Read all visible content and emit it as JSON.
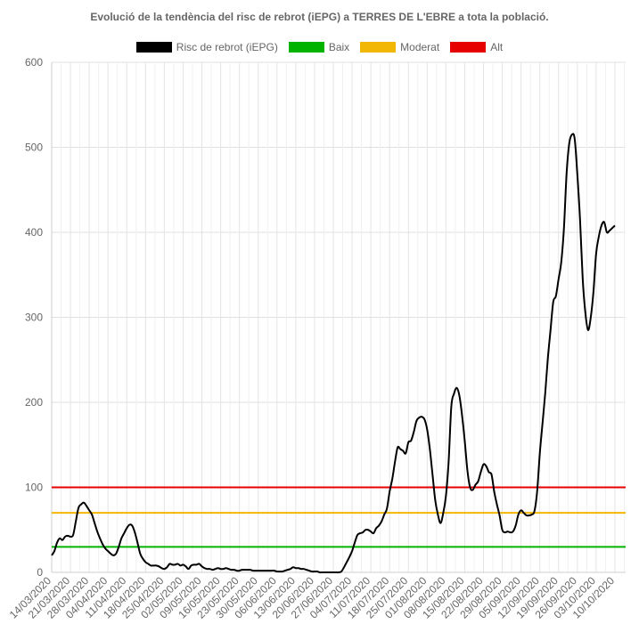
{
  "chart_data": {
    "type": "line",
    "title": "Evolució de la tendència del risc de rebrot (iEPG) a TERRES DE L'EBRE a tota la població.",
    "xlabel": "",
    "ylabel": "",
    "ylim": [
      0,
      600
    ],
    "yticks": [
      0,
      100,
      200,
      300,
      400,
      500,
      600
    ],
    "x_start": "14/03/2020",
    "x_end": "14/10/2020",
    "xtick_labels": [
      "14/03/2020",
      "21/03/2020",
      "28/03/2020",
      "04/04/2020",
      "11/04/2020",
      "18/04/2020",
      "25/04/2020",
      "02/05/2020",
      "09/05/2020",
      "16/05/2020",
      "23/05/2020",
      "30/05/2020",
      "06/06/2020",
      "13/06/2020",
      "20/06/2020",
      "27/06/2020",
      "04/07/2020",
      "11/07/2020",
      "18/07/2020",
      "25/07/2020",
      "01/08/2020",
      "08/08/2020",
      "15/08/2020",
      "22/08/2020",
      "29/08/2020",
      "05/09/2020",
      "12/09/2020",
      "19/09/2020",
      "26/09/2020",
      "03/10/2020",
      "10/10/2020"
    ],
    "grid": true,
    "legend_position": "top",
    "series": [
      {
        "name": "Risc de rebrot (iEPG)",
        "color": "#000000",
        "points": [
          [
            "14/03/2020",
            20
          ],
          [
            "15/03/2020",
            25
          ],
          [
            "16/03/2020",
            35
          ],
          [
            "17/03/2020",
            40
          ],
          [
            "18/03/2020",
            38
          ],
          [
            "19/03/2020",
            42
          ],
          [
            "20/03/2020",
            43
          ],
          [
            "21/03/2020",
            42
          ],
          [
            "22/03/2020",
            44
          ],
          [
            "23/03/2020",
            60
          ],
          [
            "24/03/2020",
            76
          ],
          [
            "25/03/2020",
            80
          ],
          [
            "26/03/2020",
            82
          ],
          [
            "27/03/2020",
            78
          ],
          [
            "28/03/2020",
            73
          ],
          [
            "29/03/2020",
            68
          ],
          [
            "30/03/2020",
            58
          ],
          [
            "31/03/2020",
            48
          ],
          [
            "01/04/2020",
            40
          ],
          [
            "02/04/2020",
            33
          ],
          [
            "03/04/2020",
            28
          ],
          [
            "04/04/2020",
            25
          ],
          [
            "05/04/2020",
            22
          ],
          [
            "06/04/2020",
            20
          ],
          [
            "07/04/2020",
            22
          ],
          [
            "08/04/2020",
            30
          ],
          [
            "09/04/2020",
            40
          ],
          [
            "10/04/2020",
            46
          ],
          [
            "11/04/2020",
            52
          ],
          [
            "12/04/2020",
            56
          ],
          [
            "13/04/2020",
            55
          ],
          [
            "14/04/2020",
            47
          ],
          [
            "15/04/2020",
            35
          ],
          [
            "16/04/2020",
            22
          ],
          [
            "17/04/2020",
            16
          ],
          [
            "18/04/2020",
            12
          ],
          [
            "19/04/2020",
            10
          ],
          [
            "20/04/2020",
            8
          ],
          [
            "21/04/2020",
            8
          ],
          [
            "22/04/2020",
            8
          ],
          [
            "23/04/2020",
            7
          ],
          [
            "24/04/2020",
            5
          ],
          [
            "25/04/2020",
            4
          ],
          [
            "26/04/2020",
            6
          ],
          [
            "27/04/2020",
            10
          ],
          [
            "28/04/2020",
            9
          ],
          [
            "29/04/2020",
            9
          ],
          [
            "30/04/2020",
            10
          ],
          [
            "01/05/2020",
            8
          ],
          [
            "02/05/2020",
            9
          ],
          [
            "03/05/2020",
            7
          ],
          [
            "04/05/2020",
            4
          ],
          [
            "05/05/2020",
            8
          ],
          [
            "06/05/2020",
            9
          ],
          [
            "07/05/2020",
            9
          ],
          [
            "08/05/2020",
            10
          ],
          [
            "09/05/2020",
            7
          ],
          [
            "10/05/2020",
            5
          ],
          [
            "11/05/2020",
            4
          ],
          [
            "12/05/2020",
            4
          ],
          [
            "13/05/2020",
            3
          ],
          [
            "14/05/2020",
            4
          ],
          [
            "15/05/2020",
            5
          ],
          [
            "16/05/2020",
            4
          ],
          [
            "17/05/2020",
            4
          ],
          [
            "18/05/2020",
            5
          ],
          [
            "19/05/2020",
            4
          ],
          [
            "20/05/2020",
            3
          ],
          [
            "21/05/2020",
            3
          ],
          [
            "22/05/2020",
            2
          ],
          [
            "23/05/2020",
            2
          ],
          [
            "24/05/2020",
            3
          ],
          [
            "25/05/2020",
            3
          ],
          [
            "26/05/2020",
            3
          ],
          [
            "27/05/2020",
            3
          ],
          [
            "28/05/2020",
            2
          ],
          [
            "29/05/2020",
            2
          ],
          [
            "30/05/2020",
            2
          ],
          [
            "31/05/2020",
            2
          ],
          [
            "01/06/2020",
            2
          ],
          [
            "02/06/2020",
            2
          ],
          [
            "03/06/2020",
            2
          ],
          [
            "04/06/2020",
            2
          ],
          [
            "05/06/2020",
            2
          ],
          [
            "06/06/2020",
            1
          ],
          [
            "07/06/2020",
            1
          ],
          [
            "08/06/2020",
            1
          ],
          [
            "09/06/2020",
            2
          ],
          [
            "10/06/2020",
            3
          ],
          [
            "11/06/2020",
            4
          ],
          [
            "12/06/2020",
            6
          ],
          [
            "13/06/2020",
            5
          ],
          [
            "14/06/2020",
            5
          ],
          [
            "15/06/2020",
            4
          ],
          [
            "16/06/2020",
            4
          ],
          [
            "17/06/2020",
            3
          ],
          [
            "18/06/2020",
            2
          ],
          [
            "19/06/2020",
            1
          ],
          [
            "20/06/2020",
            1
          ],
          [
            "21/06/2020",
            1
          ],
          [
            "22/06/2020",
            0
          ],
          [
            "23/06/2020",
            0
          ],
          [
            "24/06/2020",
            0
          ],
          [
            "25/06/2020",
            0
          ],
          [
            "26/06/2020",
            0
          ],
          [
            "27/06/2020",
            0
          ],
          [
            "28/06/2020",
            0
          ],
          [
            "29/06/2020",
            0
          ],
          [
            "30/06/2020",
            1
          ],
          [
            "01/07/2020",
            6
          ],
          [
            "02/07/2020",
            12
          ],
          [
            "03/07/2020",
            18
          ],
          [
            "04/07/2020",
            25
          ],
          [
            "05/07/2020",
            35
          ],
          [
            "06/07/2020",
            44
          ],
          [
            "07/07/2020",
            46
          ],
          [
            "08/07/2020",
            47
          ],
          [
            "09/07/2020",
            50
          ],
          [
            "10/07/2020",
            50
          ],
          [
            "11/07/2020",
            48
          ],
          [
            "12/07/2020",
            46
          ],
          [
            "13/07/2020",
            52
          ],
          [
            "14/07/2020",
            55
          ],
          [
            "15/07/2020",
            60
          ],
          [
            "16/07/2020",
            68
          ],
          [
            "17/07/2020",
            75
          ],
          [
            "18/07/2020",
            95
          ],
          [
            "19/07/2020",
            110
          ],
          [
            "20/07/2020",
            130
          ],
          [
            "21/07/2020",
            147
          ],
          [
            "22/07/2020",
            145
          ],
          [
            "23/07/2020",
            143
          ],
          [
            "24/07/2020",
            140
          ],
          [
            "25/07/2020",
            153
          ],
          [
            "26/07/2020",
            155
          ],
          [
            "27/07/2020",
            165
          ],
          [
            "28/07/2020",
            178
          ],
          [
            "29/07/2020",
            182
          ],
          [
            "30/07/2020",
            183
          ],
          [
            "31/07/2020",
            180
          ],
          [
            "01/08/2020",
            168
          ],
          [
            "02/08/2020",
            145
          ],
          [
            "03/08/2020",
            115
          ],
          [
            "04/08/2020",
            85
          ],
          [
            "05/08/2020",
            68
          ],
          [
            "06/08/2020",
            58
          ],
          [
            "07/08/2020",
            70
          ],
          [
            "08/08/2020",
            90
          ],
          [
            "09/08/2020",
            130
          ],
          [
            "10/08/2020",
            195
          ],
          [
            "11/08/2020",
            210
          ],
          [
            "12/08/2020",
            217
          ],
          [
            "13/08/2020",
            208
          ],
          [
            "14/08/2020",
            185
          ],
          [
            "15/08/2020",
            155
          ],
          [
            "16/08/2020",
            120
          ],
          [
            "17/08/2020",
            100
          ],
          [
            "18/08/2020",
            97
          ],
          [
            "19/08/2020",
            103
          ],
          [
            "20/08/2020",
            107
          ],
          [
            "21/08/2020",
            118
          ],
          [
            "22/08/2020",
            127
          ],
          [
            "23/08/2020",
            125
          ],
          [
            "24/08/2020",
            118
          ],
          [
            "25/08/2020",
            115
          ],
          [
            "26/08/2020",
            95
          ],
          [
            "27/08/2020",
            80
          ],
          [
            "28/08/2020",
            67
          ],
          [
            "29/08/2020",
            50
          ],
          [
            "30/08/2020",
            47
          ],
          [
            "31/08/2020",
            48
          ],
          [
            "01/09/2020",
            47
          ],
          [
            "02/09/2020",
            48
          ],
          [
            "03/09/2020",
            55
          ],
          [
            "04/09/2020",
            68
          ],
          [
            "05/09/2020",
            73
          ],
          [
            "06/09/2020",
            70
          ],
          [
            "07/09/2020",
            67
          ],
          [
            "08/09/2020",
            67
          ],
          [
            "09/09/2020",
            68
          ],
          [
            "10/09/2020",
            72
          ],
          [
            "11/09/2020",
            95
          ],
          [
            "12/09/2020",
            140
          ],
          [
            "13/09/2020",
            175
          ],
          [
            "14/09/2020",
            210
          ],
          [
            "15/09/2020",
            252
          ],
          [
            "16/09/2020",
            285
          ],
          [
            "17/09/2020",
            318
          ],
          [
            "18/09/2020",
            325
          ],
          [
            "19/09/2020",
            345
          ],
          [
            "20/09/2020",
            365
          ],
          [
            "21/09/2020",
            405
          ],
          [
            "22/09/2020",
            470
          ],
          [
            "23/09/2020",
            505
          ],
          [
            "24/09/2020",
            515
          ],
          [
            "25/09/2020",
            510
          ],
          [
            "26/09/2020",
            468
          ],
          [
            "27/09/2020",
            415
          ],
          [
            "28/09/2020",
            345
          ],
          [
            "29/09/2020",
            305
          ],
          [
            "30/09/2020",
            285
          ],
          [
            "01/10/2020",
            300
          ],
          [
            "02/10/2020",
            330
          ],
          [
            "03/10/2020",
            375
          ],
          [
            "04/10/2020",
            395
          ],
          [
            "05/10/2020",
            408
          ],
          [
            "06/10/2020",
            412
          ],
          [
            "07/10/2020",
            400
          ],
          [
            "08/10/2020",
            402
          ],
          [
            "09/10/2020",
            405
          ],
          [
            "10/10/2020",
            408
          ]
        ]
      },
      {
        "name": "Baix",
        "color": "#00b300",
        "value": 30
      },
      {
        "name": "Moderat",
        "color": "#f2b705",
        "value": 70
      },
      {
        "name": "Alt",
        "color": "#e60000",
        "value": 100
      }
    ]
  }
}
